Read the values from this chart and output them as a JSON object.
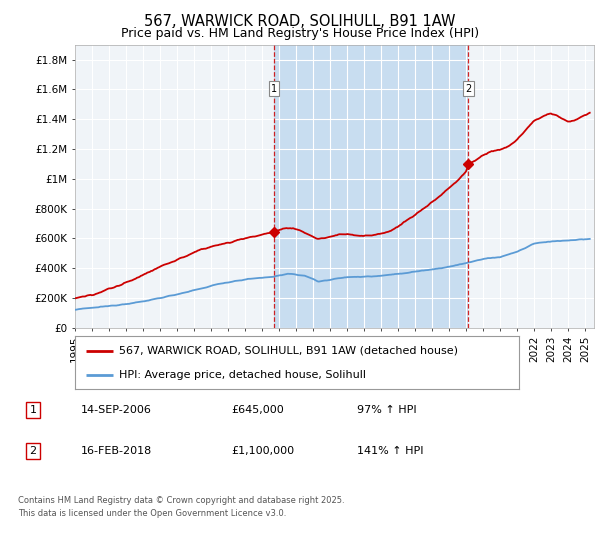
{
  "title": "567, WARWICK ROAD, SOLIHULL, B91 1AW",
  "subtitle": "Price paid vs. HM Land Registry's House Price Index (HPI)",
  "ylim": [
    0,
    1900000
  ],
  "yticks": [
    0,
    200000,
    400000,
    600000,
    800000,
    1000000,
    1200000,
    1400000,
    1600000,
    1800000
  ],
  "ytick_labels": [
    "£0",
    "£200K",
    "£400K",
    "£600K",
    "£800K",
    "£1M",
    "£1.2M",
    "£1.4M",
    "£1.6M",
    "£1.8M"
  ],
  "xlim_start": 1995.0,
  "xlim_end": 2025.5,
  "background_color": "#ddeaf7",
  "plot_bg_color_left": "#f0f0f0",
  "grid_color": "#ffffff",
  "hpi_line_color": "#5b9bd5",
  "price_line_color": "#cc0000",
  "shade_color": "#c8ddf0",
  "sale1_date": 2006.71,
  "sale1_price": 645000,
  "sale1_label": "1",
  "sale2_date": 2018.12,
  "sale2_price": 1100000,
  "sale2_label": "2",
  "legend_property": "567, WARWICK ROAD, SOLIHULL, B91 1AW (detached house)",
  "legend_hpi": "HPI: Average price, detached house, Solihull",
  "table_row1": [
    "1",
    "14-SEP-2006",
    "£645,000",
    "97% ↑ HPI"
  ],
  "table_row2": [
    "2",
    "16-FEB-2018",
    "£1,100,000",
    "141% ↑ HPI"
  ],
  "footer": "Contains HM Land Registry data © Crown copyright and database right 2025.\nThis data is licensed under the Open Government Licence v3.0.",
  "title_fontsize": 10.5,
  "subtitle_fontsize": 9,
  "tick_fontsize": 7.5,
  "legend_fontsize": 8,
  "table_fontsize": 8,
  "footer_fontsize": 6
}
